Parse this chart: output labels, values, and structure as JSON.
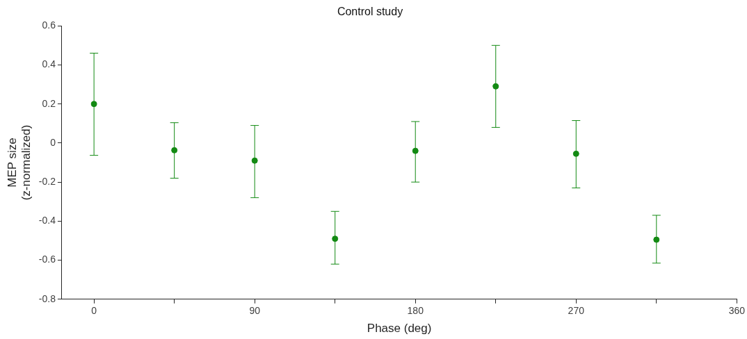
{
  "chart_data": {
    "type": "scatter",
    "title": "Control study",
    "xlabel": "Phase (deg)",
    "ylabel": "MEP size\n(z-normalized)",
    "x": [
      0,
      45,
      90,
      135,
      180,
      225,
      270,
      315
    ],
    "series": [
      {
        "color": "#138a13",
        "values": [
          0.2,
          -0.037,
          -0.09,
          -0.49,
          -0.04,
          0.29,
          -0.055,
          -0.495
        ],
        "errors": [
          [
            -0.063,
            0.46
          ],
          [
            -0.18,
            0.104
          ],
          [
            -0.28,
            0.09
          ],
          [
            -0.62,
            -0.35
          ],
          [
            -0.2,
            0.11
          ],
          [
            0.08,
            0.5
          ],
          [
            -0.23,
            0.115
          ],
          [
            -0.615,
            -0.37
          ]
        ]
      }
    ],
    "xlim": [
      -18,
      360
    ],
    "xticks": [
      0,
      {
        "value": 45,
        "label": null
      },
      90,
      {
        "value": 135,
        "label": null
      },
      180,
      {
        "value": 225,
        "label": null
      },
      270,
      {
        "value": 315,
        "label": null
      },
      360
    ],
    "ylim": [
      -0.8,
      0.6
    ],
    "yticks": [
      -0.8,
      -0.6,
      -0.4,
      -0.2,
      0,
      0.2,
      0.4,
      0.6
    ],
    "grid": false,
    "legend": false,
    "marker": "circle"
  }
}
